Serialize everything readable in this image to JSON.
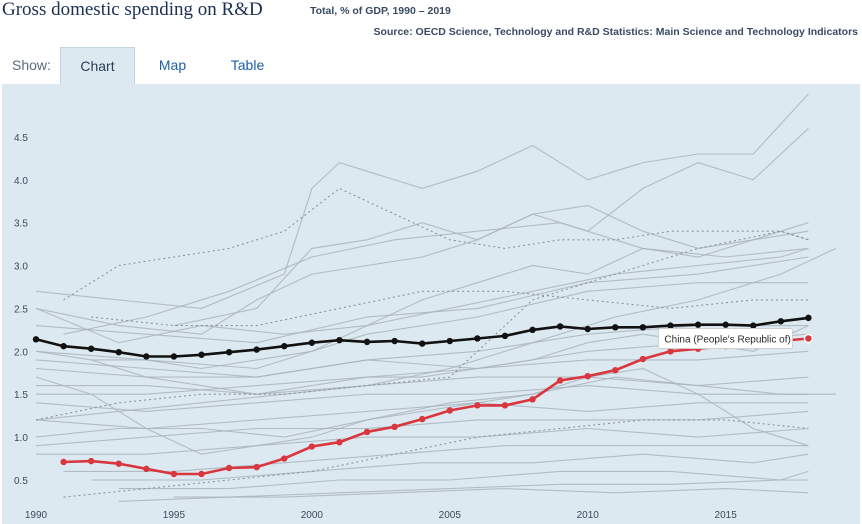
{
  "header": {
    "title": "Gross domestic spending on R&D",
    "subtitle": "Total, % of GDP, 1990 – 2019",
    "source": "Source: OECD Science, Technology and R&D Statistics: Main Science and Technology Indicators"
  },
  "tabs": {
    "show_label": "Show:",
    "items": [
      {
        "label": "Chart",
        "active": true
      },
      {
        "label": "Map",
        "active": false
      },
      {
        "label": "Table",
        "active": false
      }
    ]
  },
  "colors": {
    "background": "#dde9f1",
    "highlight": "#d9363e",
    "baseline": "#111111",
    "context": "#a9b4bd",
    "link": "#1f5fa7"
  },
  "chart_data": {
    "type": "line",
    "title": "Gross domestic spending on R&D",
    "subtitle": "Total, % of GDP, 1990 – 2019",
    "xlim": [
      1990,
      2019
    ],
    "ylim": [
      0.15,
      5.0
    ],
    "x_ticks": [
      1990,
      1995,
      2000,
      2005,
      2010,
      2015
    ],
    "y_ticks": [
      0.5,
      1.0,
      1.5,
      2.0,
      2.5,
      3.0,
      3.5,
      4.0,
      4.5
    ],
    "grid": false,
    "series": [
      {
        "name": "",
        "role": "highlight-black",
        "x": [
          1990,
          1991,
          1992,
          1993,
          1994,
          1995,
          1996,
          1997,
          1998,
          1999,
          2000,
          2001,
          2002,
          2003,
          2004,
          2005,
          2006,
          2007,
          2008,
          2009,
          2010,
          2011,
          2012,
          2013,
          2014,
          2015,
          2016,
          2017,
          2018
        ],
        "values": [
          2.14,
          2.06,
          2.03,
          1.99,
          1.94,
          1.94,
          1.96,
          1.99,
          2.02,
          2.06,
          2.1,
          2.13,
          2.11,
          2.12,
          2.09,
          2.12,
          2.15,
          2.18,
          2.25,
          2.29,
          2.26,
          2.28,
          2.28,
          2.3,
          2.31,
          2.31,
          2.3,
          2.35,
          2.39
        ]
      },
      {
        "name": "China (People's Republic of)",
        "role": "highlight-red",
        "x": [
          1991,
          1992,
          1993,
          1994,
          1995,
          1996,
          1997,
          1998,
          1999,
          2000,
          2001,
          2002,
          2003,
          2004,
          2005,
          2006,
          2007,
          2008,
          2009,
          2010,
          2011,
          2012,
          2013,
          2014,
          2015,
          2016,
          2017,
          2018
        ],
        "values": [
          0.71,
          0.72,
          0.69,
          0.63,
          0.57,
          0.57,
          0.64,
          0.65,
          0.75,
          0.89,
          0.94,
          1.06,
          1.12,
          1.21,
          1.31,
          1.37,
          1.37,
          1.44,
          1.66,
          1.71,
          1.78,
          1.91,
          2.0,
          2.03,
          2.06,
          2.1,
          2.12,
          2.15
        ]
      }
    ],
    "background_series": [
      {
        "x": [
          1990,
          1993,
          1996,
          1999,
          2000,
          2001,
          2002,
          2004,
          2006,
          2008,
          2010,
          2012,
          2014,
          2016,
          2018
        ],
        "values": [
          2.7,
          2.6,
          2.5,
          2.9,
          3.9,
          4.2,
          4.1,
          3.9,
          4.1,
          4.4,
          4.0,
          4.2,
          4.3,
          4.3,
          5.0
        ]
      },
      {
        "x": [
          1995,
          1998,
          2000,
          2002,
          2004,
          2006,
          2008,
          2010,
          2012,
          2014,
          2016,
          2018
        ],
        "values": [
          2.3,
          2.5,
          3.2,
          3.3,
          3.5,
          3.3,
          3.6,
          3.4,
          3.9,
          4.2,
          4.0,
          4.6
        ]
      },
      {
        "x": [
          1990,
          1993,
          1996,
          1998,
          2000,
          2002,
          2004,
          2006,
          2008,
          2010,
          2012,
          2014,
          2016,
          2018
        ],
        "values": [
          2.5,
          2.3,
          2.2,
          2.6,
          2.9,
          3.0,
          3.1,
          3.3,
          3.6,
          3.7,
          3.4,
          3.2,
          3.3,
          3.4
        ]
      },
      {
        "x": [
          1991,
          1994,
          1997,
          2000,
          2003,
          2006,
          2009,
          2012,
          2015,
          2018
        ],
        "values": [
          2.2,
          2.4,
          2.7,
          3.1,
          3.3,
          3.4,
          3.5,
          3.2,
          3.1,
          3.2
        ]
      },
      {
        "x": [
          1990,
          1993,
          1996,
          1999,
          2002,
          2005,
          2008,
          2011,
          2014,
          2017,
          2018
        ],
        "values": [
          2.5,
          2.1,
          2.3,
          2.2,
          2.3,
          2.5,
          2.7,
          2.9,
          3.0,
          3.1,
          3.2
        ]
      },
      {
        "x": [
          1990,
          1994,
          1998,
          2002,
          2006,
          2010,
          2014,
          2018
        ],
        "values": [
          2.3,
          2.2,
          2.1,
          2.4,
          2.5,
          2.8,
          2.9,
          3.1
        ]
      },
      {
        "x": [
          1990,
          1994,
          1998,
          2002,
          2006,
          2010,
          2014,
          2018
        ],
        "values": [
          2.0,
          1.9,
          1.8,
          2.2,
          2.4,
          2.7,
          2.8,
          2.8
        ]
      },
      {
        "x": [
          1990,
          1994,
          1998,
          2002,
          2006,
          2010,
          2014,
          2018
        ],
        "values": [
          1.8,
          1.7,
          1.7,
          1.9,
          2.0,
          2.2,
          2.3,
          2.3
        ]
      },
      {
        "x": [
          1990,
          1994,
          1998,
          2002,
          2006,
          2010,
          2014,
          2018
        ],
        "values": [
          1.5,
          1.5,
          1.6,
          1.7,
          1.8,
          2.0,
          2.1,
          2.2
        ]
      },
      {
        "x": [
          1990,
          1994,
          1998,
          2002,
          2006,
          2010,
          2014,
          2018
        ],
        "values": [
          1.9,
          1.8,
          1.7,
          1.9,
          1.8,
          1.9,
          1.9,
          2.0
        ]
      },
      {
        "x": [
          1990,
          1994,
          1998,
          2002,
          2006,
          2010,
          2014,
          2018
        ],
        "values": [
          1.6,
          1.6,
          1.5,
          1.6,
          1.7,
          1.7,
          1.6,
          1.7
        ]
      },
      {
        "x": [
          1990,
          1994,
          1998,
          2002,
          2006,
          2010,
          2014,
          2018
        ],
        "values": [
          1.4,
          1.3,
          1.4,
          1.5,
          1.5,
          1.6,
          1.5,
          1.5
        ]
      },
      {
        "x": [
          1990,
          1994,
          1998,
          2002,
          2006,
          2010,
          2014,
          2018
        ],
        "values": [
          1.2,
          1.1,
          1.2,
          1.3,
          1.4,
          1.3,
          1.4,
          1.4
        ]
      },
      {
        "x": [
          1990,
          1994,
          1998,
          2002,
          2006,
          2010,
          2014,
          2018
        ],
        "values": [
          0.9,
          1.0,
          1.1,
          1.1,
          1.2,
          1.2,
          1.2,
          1.3
        ]
      },
      {
        "x": [
          1990,
          1994,
          1998,
          2002,
          2006,
          2010,
          2014,
          2018
        ],
        "values": [
          0.8,
          0.8,
          0.9,
          1.0,
          1.0,
          1.1,
          1.0,
          1.1
        ]
      },
      {
        "x": [
          1991,
          1995,
          1999,
          2003,
          2007,
          2011,
          2015,
          2018
        ],
        "values": [
          0.6,
          0.6,
          0.7,
          0.8,
          0.9,
          0.9,
          0.9,
          0.9
        ]
      },
      {
        "x": [
          1992,
          1996,
          2000,
          2004,
          2008,
          2012,
          2016,
          2018
        ],
        "values": [
          0.5,
          0.5,
          0.6,
          0.7,
          0.7,
          0.8,
          0.7,
          0.8
        ]
      },
      {
        "x": [
          1993,
          1997,
          2001,
          2005,
          2009,
          2013,
          2017,
          2018
        ],
        "values": [
          0.4,
          0.4,
          0.5,
          0.5,
          0.6,
          0.6,
          0.5,
          0.6
        ]
      },
      {
        "x": [
          1993,
          1997,
          2001,
          2005,
          2009,
          2013,
          2017,
          2018
        ],
        "values": [
          0.25,
          0.3,
          0.35,
          0.4,
          0.45,
          0.45,
          0.5,
          0.5
        ]
      },
      {
        "x": [
          1995,
          1999,
          2003,
          2007,
          2011,
          2015,
          2018
        ],
        "values": [
          0.3,
          0.3,
          0.35,
          0.4,
          0.35,
          0.4,
          0.35
        ]
      },
      {
        "x": [
          1990,
          1992,
          1994,
          1996,
          1998,
          2000,
          2002,
          2004,
          2006,
          2008,
          2010,
          2012,
          2014,
          2016,
          2018
        ],
        "values": [
          1.7,
          1.5,
          1.1,
          0.8,
          0.9,
          1.0,
          1.2,
          1.3,
          1.4,
          1.5,
          1.7,
          1.8,
          1.5,
          1.1,
          0.9
        ]
      },
      {
        "x": [
          1990,
          1992,
          1994,
          1996,
          1998,
          2000,
          2002,
          2004,
          2006,
          2008,
          2010,
          2012,
          2014,
          2016,
          2018
        ],
        "values": [
          2.0,
          1.9,
          1.9,
          1.8,
          1.9,
          2.0,
          2.3,
          2.6,
          2.8,
          3.0,
          2.9,
          3.2,
          3.1,
          3.3,
          3.5
        ]
      },
      {
        "x": [
          1992,
          1994,
          1996,
          1998,
          2000,
          2002,
          2004,
          2006,
          2008,
          2010,
          2012,
          2014,
          2016,
          2018
        ],
        "values": [
          1.9,
          1.7,
          1.6,
          1.5,
          1.6,
          1.7,
          1.7,
          1.8,
          1.9,
          2.1,
          2.2,
          2.1,
          2.0,
          2.3
        ]
      },
      {
        "x": [
          1990,
          1993,
          1996,
          1999,
          2002,
          2005,
          2008,
          2011,
          2014,
          2017,
          2019
        ],
        "values": [
          1.2,
          1.3,
          1.4,
          1.5,
          1.6,
          1.8,
          2.1,
          2.4,
          2.6,
          2.9,
          3.2
        ]
      },
      {
        "x": [
          1990,
          1993,
          1996,
          1999,
          2002,
          2005,
          2008,
          2011,
          2014,
          2017,
          2019
        ],
        "values": [
          1.0,
          1.1,
          1.1,
          1.0,
          1.2,
          1.4,
          1.5,
          1.7,
          1.6,
          1.5,
          1.5
        ]
      }
    ],
    "dotted_series": [
      {
        "x": [
          1991,
          1993,
          1995,
          1997,
          1999,
          2001,
          2003,
          2005,
          2007,
          2009,
          2011,
          2013,
          2015,
          2017,
          2018
        ],
        "values": [
          2.6,
          3.0,
          3.1,
          3.2,
          3.4,
          3.9,
          3.6,
          3.3,
          3.2,
          3.3,
          3.3,
          3.4,
          3.4,
          3.4,
          3.3
        ]
      },
      {
        "x": [
          1990,
          1993,
          1996,
          1999,
          2002,
          2005,
          2008,
          2011,
          2014,
          2017,
          2018
        ],
        "values": [
          1.2,
          1.4,
          1.5,
          1.5,
          1.6,
          1.7,
          2.6,
          2.9,
          3.2,
          3.4,
          3.3
        ]
      },
      {
        "x": [
          1991,
          1994,
          1997,
          2000,
          2003,
          2006,
          2009,
          2012,
          2015,
          2018
        ],
        "values": [
          0.3,
          0.4,
          0.5,
          0.6,
          0.8,
          1.0,
          1.1,
          1.2,
          1.2,
          1.1
        ]
      },
      {
        "x": [
          1992,
          1995,
          1998,
          2001,
          2004,
          2007,
          2010,
          2013,
          2016,
          2018
        ],
        "values": [
          2.4,
          2.3,
          2.3,
          2.5,
          2.7,
          2.7,
          2.6,
          2.5,
          2.6,
          2.6
        ]
      }
    ],
    "tooltip": {
      "label": "China (People's Republic of)"
    }
  }
}
